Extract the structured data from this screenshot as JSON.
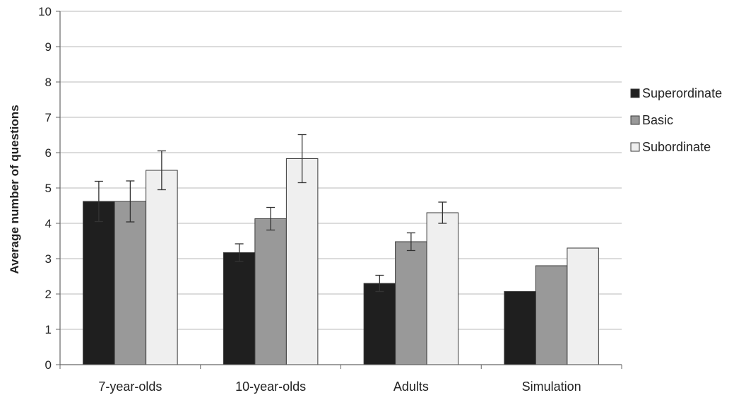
{
  "chart_data": {
    "type": "bar",
    "title": "",
    "xlabel": "",
    "ylabel": "Average number of questions",
    "ylim": [
      0,
      10
    ],
    "yticks": [
      0,
      1,
      2,
      3,
      4,
      5,
      6,
      7,
      8,
      9,
      10
    ],
    "grid": true,
    "legend_position": "right",
    "categories": [
      "7-year-olds",
      "10-year-olds",
      "Adults",
      "Simulation"
    ],
    "series": [
      {
        "name": "Superordinate",
        "color": "#1f1f1f",
        "values": [
          4.62,
          3.17,
          2.3,
          2.07
        ],
        "error": [
          0.57,
          0.25,
          0.23,
          null
        ]
      },
      {
        "name": "Basic",
        "color": "#999999",
        "values": [
          4.62,
          4.13,
          3.48,
          2.8
        ],
        "error": [
          0.58,
          0.32,
          0.25,
          null
        ]
      },
      {
        "name": "Subordinate",
        "color": "#efefef",
        "values": [
          5.5,
          5.83,
          4.3,
          3.3
        ],
        "error": [
          0.55,
          0.68,
          0.3,
          null
        ]
      }
    ]
  }
}
